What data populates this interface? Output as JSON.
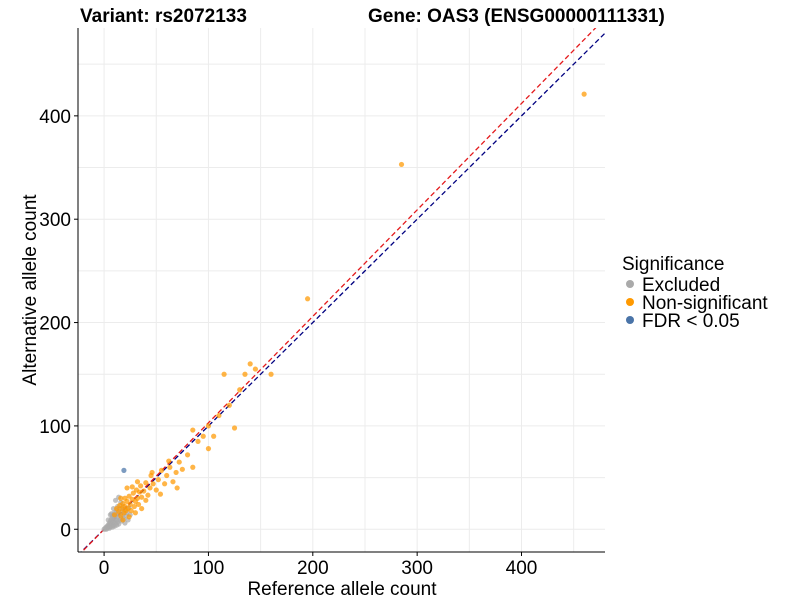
{
  "chart_data": {
    "type": "scatter",
    "title_left": "Variant: rs2072133",
    "title_right": "Gene: OAS3 (ENSG00000111331)",
    "xlabel": "Reference allele count",
    "ylabel": "Alternative allele count",
    "xlim": [
      -25,
      480
    ],
    "ylim": [
      -22,
      485
    ],
    "xticks": [
      0,
      100,
      200,
      300,
      400
    ],
    "yticks": [
      0,
      100,
      200,
      300,
      400
    ],
    "grid": true,
    "legend": {
      "title": "Significance",
      "position": "right",
      "entries": [
        {
          "label": "Excluded",
          "color": "#aaaaaa"
        },
        {
          "label": "Non-significant",
          "color": "#ff9900"
        },
        {
          "label": "FDR < 0.05",
          "color": "#4a74a8"
        }
      ]
    },
    "reference_lines": [
      {
        "slope": 1.0,
        "intercept": 0,
        "color": "#000080",
        "style": "dashed"
      },
      {
        "slope": 1.03,
        "intercept": 0,
        "color": "#e41a1c",
        "style": "dashed"
      }
    ],
    "series": [
      {
        "name": "Excluded",
        "color": "#aaaaaa",
        "points": [
          [
            0,
            0
          ],
          [
            1,
            1
          ],
          [
            2,
            0
          ],
          [
            2,
            2
          ],
          [
            3,
            1
          ],
          [
            3,
            3
          ],
          [
            4,
            2
          ],
          [
            4,
            4
          ],
          [
            5,
            1
          ],
          [
            5,
            3
          ],
          [
            5,
            6
          ],
          [
            6,
            2
          ],
          [
            6,
            5
          ],
          [
            6,
            8
          ],
          [
            7,
            3
          ],
          [
            7,
            6
          ],
          [
            7,
            10
          ],
          [
            8,
            2
          ],
          [
            8,
            5
          ],
          [
            8,
            9
          ],
          [
            8,
            12
          ],
          [
            9,
            4
          ],
          [
            9,
            7
          ],
          [
            9,
            14
          ],
          [
            10,
            3
          ],
          [
            10,
            8
          ],
          [
            10,
            11
          ],
          [
            10,
            16
          ],
          [
            11,
            6
          ],
          [
            11,
            13
          ],
          [
            12,
            4
          ],
          [
            12,
            9
          ],
          [
            12,
            18
          ],
          [
            13,
            7
          ],
          [
            13,
            12
          ],
          [
            13,
            22
          ],
          [
            14,
            5
          ],
          [
            14,
            15
          ],
          [
            15,
            9
          ],
          [
            15,
            20
          ],
          [
            16,
            11
          ],
          [
            16,
            26
          ],
          [
            17,
            8
          ],
          [
            17,
            17
          ],
          [
            18,
            14
          ],
          [
            19,
            10
          ],
          [
            20,
            6
          ],
          [
            20,
            19
          ],
          [
            21,
            13
          ],
          [
            22,
            16
          ],
          [
            23,
            9
          ],
          [
            24,
            21
          ],
          [
            11,
            28
          ],
          [
            6,
            14
          ],
          [
            9,
            20
          ],
          [
            4,
            9
          ],
          [
            7,
            15
          ],
          [
            14,
            31
          ],
          [
            18,
            22
          ],
          [
            25,
            14
          ]
        ]
      },
      {
        "name": "Non-significant",
        "color": "#ff9900",
        "points": [
          [
            10,
            14
          ],
          [
            12,
            20
          ],
          [
            14,
            17
          ],
          [
            15,
            23
          ],
          [
            16,
            13
          ],
          [
            17,
            20
          ],
          [
            18,
            25
          ],
          [
            19,
            16
          ],
          [
            20,
            22
          ],
          [
            20,
            30
          ],
          [
            21,
            18
          ],
          [
            22,
            27
          ],
          [
            23,
            20
          ],
          [
            24,
            32
          ],
          [
            25,
            24
          ],
          [
            26,
            18
          ],
          [
            27,
            29
          ],
          [
            28,
            35
          ],
          [
            29,
            22
          ],
          [
            30,
            27
          ],
          [
            31,
            38
          ],
          [
            32,
            30
          ],
          [
            33,
            24
          ],
          [
            34,
            36
          ],
          [
            35,
            42
          ],
          [
            36,
            31
          ],
          [
            38,
            37
          ],
          [
            40,
            45
          ],
          [
            42,
            33
          ],
          [
            44,
            40
          ],
          [
            45,
            52
          ],
          [
            47,
            44
          ],
          [
            50,
            38
          ],
          [
            52,
            48
          ],
          [
            55,
            57
          ],
          [
            58,
            44
          ],
          [
            60,
            52
          ],
          [
            63,
            60
          ],
          [
            66,
            46
          ],
          [
            69,
            55
          ],
          [
            72,
            65
          ],
          [
            75,
            58
          ],
          [
            80,
            72
          ],
          [
            85,
            60
          ],
          [
            90,
            85
          ],
          [
            95,
            90
          ],
          [
            100,
            100
          ],
          [
            105,
            90
          ],
          [
            110,
            110
          ],
          [
            115,
            150
          ],
          [
            120,
            120
          ],
          [
            125,
            98
          ],
          [
            130,
            135
          ],
          [
            135,
            150
          ],
          [
            140,
            160
          ],
          [
            145,
            155
          ],
          [
            160,
            150
          ],
          [
            195,
            223
          ],
          [
            285,
            353
          ],
          [
            460,
            421
          ],
          [
            16,
            30
          ],
          [
            18,
            9
          ],
          [
            22,
            40
          ],
          [
            24,
            12
          ],
          [
            27,
            41
          ],
          [
            30,
            16
          ],
          [
            32,
            46
          ],
          [
            36,
            20
          ],
          [
            40,
            28
          ],
          [
            46,
            55
          ],
          [
            54,
            34
          ],
          [
            62,
            66
          ],
          [
            70,
            40
          ],
          [
            85,
            96
          ],
          [
            100,
            78
          ]
        ]
      },
      {
        "name": "FDR < 0.05",
        "color": "#4a74a8",
        "points": [
          [
            19,
            57
          ]
        ]
      }
    ]
  }
}
